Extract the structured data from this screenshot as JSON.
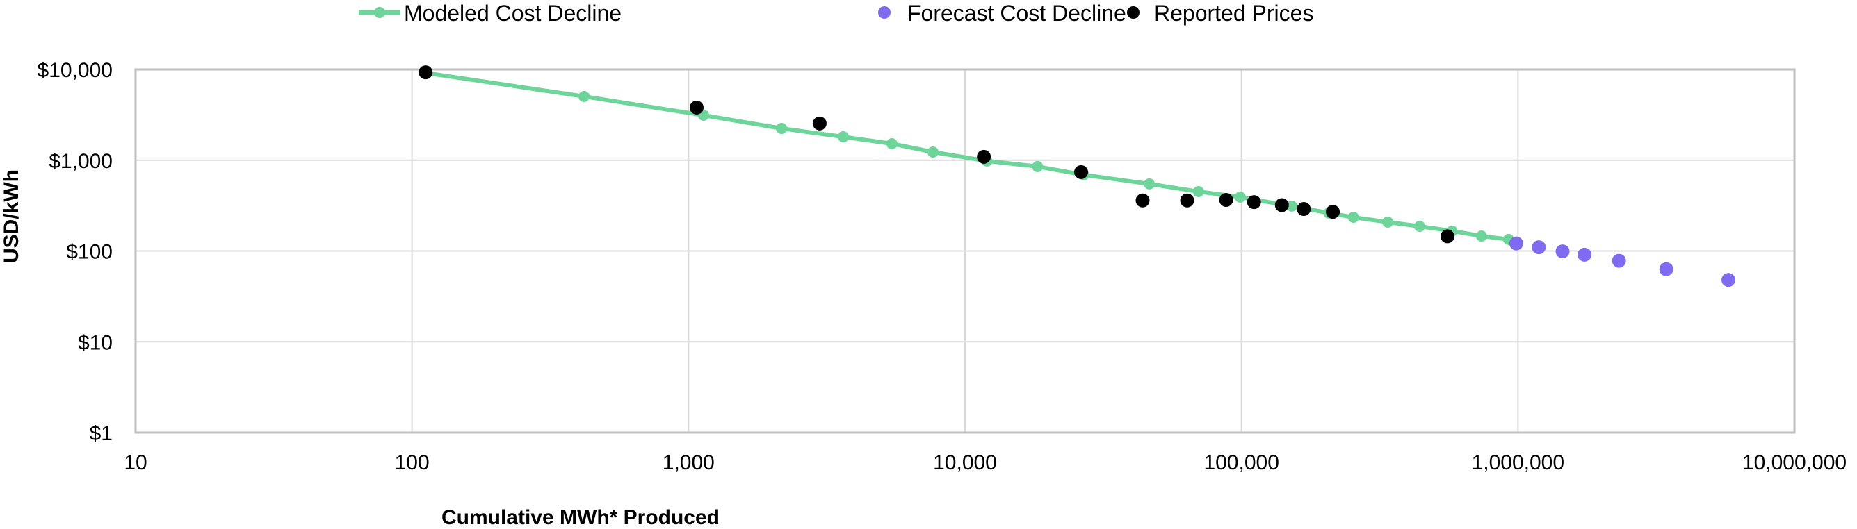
{
  "chart_data": {
    "type": "scatter",
    "title": "",
    "xlabel": "Cumulative MWh* Produced",
    "ylabel": "USD/kWh",
    "xscale": "log",
    "yscale": "log",
    "xlim": [
      10,
      10000000
    ],
    "ylim": [
      1,
      10000
    ],
    "grid": true,
    "legend_position": "top",
    "x_ticks": [
      {
        "value": 10,
        "label": "10"
      },
      {
        "value": 100,
        "label": "100"
      },
      {
        "value": 1000,
        "label": "1,000"
      },
      {
        "value": 10000,
        "label": "10,000"
      },
      {
        "value": 100000,
        "label": "100,000"
      },
      {
        "value": 1000000,
        "label": "1,000,000"
      },
      {
        "value": 10000000,
        "label": "10,000,000"
      }
    ],
    "y_ticks": [
      {
        "value": 1,
        "label": "$1"
      },
      {
        "value": 10,
        "label": "$10"
      },
      {
        "value": 100,
        "label": "$100"
      },
      {
        "value": 1000,
        "label": "$1,000"
      },
      {
        "value": 10000,
        "label": "$10,000"
      }
    ],
    "series": [
      {
        "name": "Modeled Cost Decline",
        "style": "line-markers",
        "color": "#6dd49a",
        "points": [
          [
            112,
            9160
          ],
          [
            419,
            5040
          ],
          [
            1133,
            3130
          ],
          [
            2170,
            2240
          ],
          [
            3630,
            1810
          ],
          [
            5440,
            1520
          ],
          [
            7660,
            1230
          ],
          [
            12000,
            980
          ],
          [
            18300,
            851
          ],
          [
            26900,
            689
          ],
          [
            46400,
            548
          ],
          [
            69900,
            451
          ],
          [
            99000,
            392
          ],
          [
            152000,
            312
          ],
          [
            207000,
            262
          ],
          [
            254000,
            235
          ],
          [
            338000,
            208
          ],
          [
            441000,
            187
          ],
          [
            578000,
            166
          ],
          [
            738000,
            146
          ],
          [
            925000,
            134
          ]
        ]
      },
      {
        "name": "Forecast Cost Decline",
        "style": "markers",
        "color": "#7f6bf2",
        "points": [
          [
            986000,
            121
          ],
          [
            1190000,
            110
          ],
          [
            1450000,
            99
          ],
          [
            1740000,
            91
          ],
          [
            2320000,
            78
          ],
          [
            3440000,
            63
          ],
          [
            5770000,
            48
          ]
        ]
      },
      {
        "name": "Reported Prices",
        "style": "markers",
        "color": "#000000",
        "points": [
          [
            112,
            9300
          ],
          [
            1070,
            3800
          ],
          [
            2980,
            2540
          ],
          [
            11700,
            1090
          ],
          [
            26300,
            740
          ],
          [
            43900,
            360
          ],
          [
            63600,
            360
          ],
          [
            88000,
            365
          ],
          [
            111000,
            345
          ],
          [
            140000,
            320
          ],
          [
            168000,
            290
          ],
          [
            214000,
            270
          ],
          [
            556000,
            145
          ]
        ]
      }
    ]
  },
  "legend": [
    {
      "label": "Modeled Cost Decline",
      "icon": "line-marker-icon"
    },
    {
      "label": "Forecast Cost Decline",
      "icon": "circle-marker-icon"
    },
    {
      "label": "Reported Prices",
      "icon": "circle-marker-icon"
    }
  ],
  "colors": {
    "gridline": "#d9d9d9",
    "axis_border": "#bfbfbf"
  }
}
